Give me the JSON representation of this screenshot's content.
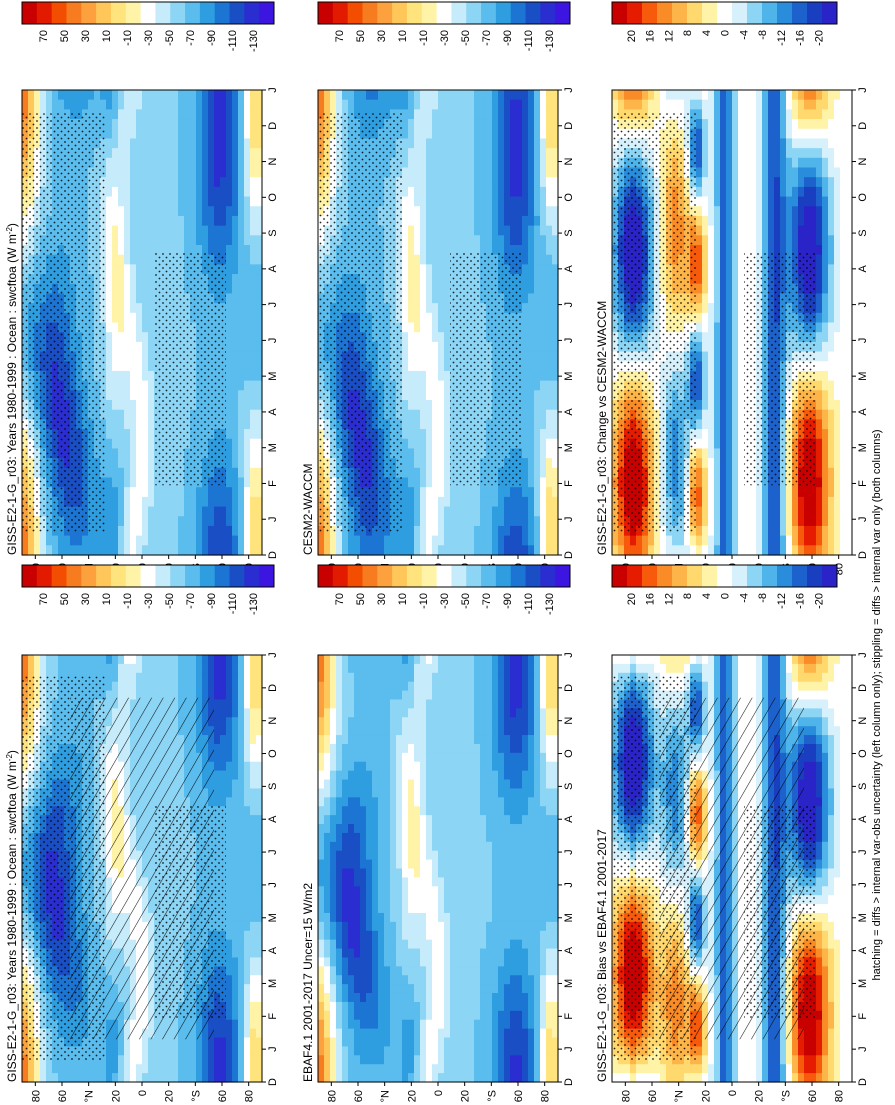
{
  "figure": {
    "footnote": "hatching = diffs > internal var-obs uncertainty (left column only); stippling = diffs > internal var only (both columns)"
  },
  "colors": {
    "abs_scale": [
      "#c80000",
      "#e21a00",
      "#f24d00",
      "#f77b1f",
      "#fca13d",
      "#ffc65a",
      "#ffe37d",
      "#fff3a8",
      "#ffffff",
      "#c6ecfb",
      "#8dd5f5",
      "#5abdee",
      "#2f9ee0",
      "#1d75d3",
      "#1a4ec4",
      "#2a2ed0",
      "#3c16e0"
    ],
    "diff_scale": [
      "#c80000",
      "#e61c00",
      "#f65a0a",
      "#fa8c28",
      "#fdb54a",
      "#ffd86e",
      "#fff3a8",
      "#ffffff",
      "#d6f1fb",
      "#8dd5f5",
      "#4fb4ea",
      "#2a8ddc",
      "#1d62cc",
      "#1a3ec0",
      "#2a24c8"
    ]
  },
  "chart_data": [
    {
      "id": "obs-left-top",
      "type": "heatmap",
      "title": "GISS-E2-1-G_r03: Years 1980-1999 : Ocean : swcftoa (W m",
      "title_sup": "-2",
      "title_end": ")",
      "x_ticks": [
        "D",
        "J",
        "F",
        "M",
        "A",
        "M",
        "J",
        "J",
        "A",
        "S",
        "O",
        "N",
        "D",
        "J"
      ],
      "y_ticks": [
        "80",
        "60",
        "°N",
        "20",
        "0",
        "20",
        "°S",
        "60",
        "80"
      ],
      "colorbar": [
        "70",
        "50",
        "30",
        "10",
        "-10",
        "-30",
        "-50",
        "-70",
        "-90",
        "-110",
        "-130"
      ],
      "scale": "abs",
      "hatching": true,
      "stippling": true
    },
    {
      "id": "obs-left-mid",
      "type": "heatmap",
      "title": "EBAF4.1 2001-2017 Uncer=15 W/m2",
      "x_ticks": [
        "D",
        "J",
        "F",
        "M",
        "A",
        "M",
        "J",
        "J",
        "A",
        "S",
        "O",
        "N",
        "D",
        "J"
      ],
      "y_ticks": [
        "80",
        "60",
        "°N",
        "20",
        "0",
        "20",
        "°S",
        "60",
        "80"
      ],
      "colorbar": [
        "70",
        "50",
        "30",
        "10",
        "-10",
        "-30",
        "-50",
        "-70",
        "-90",
        "-110",
        "-130"
      ],
      "scale": "abs",
      "hatching": false,
      "stippling": false
    },
    {
      "id": "obs-left-bottom",
      "type": "heatmap",
      "title": "GISS-E2-1-G_r03: Bias vs EBAF4.1 2001-2017",
      "x_ticks": [
        "D",
        "J",
        "F",
        "M",
        "A",
        "M",
        "J",
        "J",
        "A",
        "S",
        "O",
        "N",
        "D",
        "J"
      ],
      "y_ticks": [
        "80",
        "60",
        "°N",
        "20",
        "0",
        "20",
        "°S",
        "60",
        "80"
      ],
      "colorbar": [
        "20",
        "16",
        "12",
        "8",
        "4",
        "0",
        "-4",
        "-8",
        "-12",
        "-16",
        "-20"
      ],
      "scale": "diff",
      "hatching": true,
      "stippling": true
    },
    {
      "id": "model-right-top",
      "type": "heatmap",
      "title": "GISS-E2-1-G_r03: Years 1980-1999 : Ocean : swcftoa (W m",
      "title_sup": "-2",
      "title_end": ")",
      "x_ticks": [
        "D",
        "J",
        "F",
        "M",
        "A",
        "M",
        "J",
        "J",
        "A",
        "S",
        "O",
        "N",
        "D",
        "J"
      ],
      "y_ticks": [
        "80",
        "60",
        "°N",
        "20",
        "0",
        "20",
        "°S",
        "60",
        "80"
      ],
      "colorbar": [
        "70",
        "50",
        "30",
        "10",
        "-10",
        "-30",
        "-50",
        "-70",
        "-90",
        "-110",
        "-130"
      ],
      "scale": "abs",
      "hatching": false,
      "stippling": true
    },
    {
      "id": "model-right-mid",
      "type": "heatmap",
      "title": "CESM2-WACCM",
      "x_ticks": [
        "D",
        "J",
        "F",
        "M",
        "A",
        "M",
        "J",
        "J",
        "A",
        "S",
        "O",
        "N",
        "D",
        "J"
      ],
      "y_ticks": [
        "80",
        "60",
        "°N",
        "20",
        "0",
        "20",
        "°S",
        "60",
        "80"
      ],
      "colorbar": [
        "70",
        "50",
        "30",
        "10",
        "-10",
        "-30",
        "-50",
        "-70",
        "-90",
        "-110",
        "-130"
      ],
      "scale": "abs",
      "hatching": false,
      "stippling": true
    },
    {
      "id": "model-right-bottom",
      "type": "heatmap",
      "title": "GISS-E2-1-G_r03: Change vs CESM2-WACCM",
      "x_ticks": [
        "D",
        "J",
        "F",
        "M",
        "A",
        "M",
        "J",
        "J",
        "A",
        "S",
        "O",
        "N",
        "D",
        "J"
      ],
      "y_ticks": [
        "80",
        "60",
        "°N",
        "20",
        "0",
        "20",
        "°S",
        "60",
        "80"
      ],
      "colorbar": [
        "20",
        "16",
        "12",
        "8",
        "4",
        "0",
        "-4",
        "-8",
        "-12",
        "-16",
        "-20"
      ],
      "scale": "diff",
      "hatching": false,
      "stippling": true
    }
  ]
}
